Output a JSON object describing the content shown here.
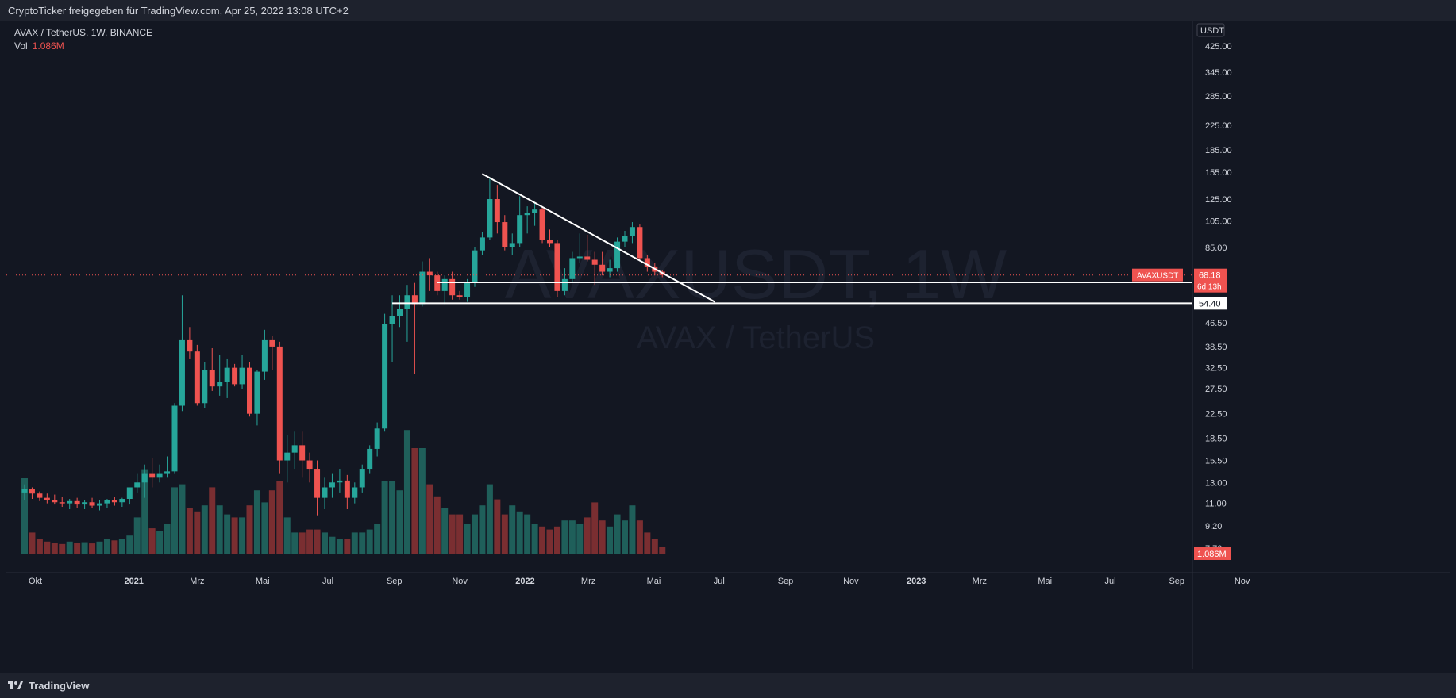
{
  "header": {
    "share_text": "CryptoTicker freigegeben für TradingView.com, Apr 25, 2022 13:08 UTC+2"
  },
  "legend": {
    "symbol_line": "AVAX / TetherUS, 1W, BINANCE",
    "vol_label": "Vol",
    "vol_value": "1.086M"
  },
  "watermark": {
    "line1": "AVAXUSDT, 1W",
    "line2": "AVAX / TetherUS"
  },
  "footer": {
    "brand": "TradingView"
  },
  "colors": {
    "background": "#131722",
    "up": "#26a69a",
    "down": "#ef5350",
    "vol_up": "#1f5f5a",
    "vol_down": "#7a2e31",
    "axis_text": "#d1d4dc"
  },
  "chart_data": {
    "type": "candlestick",
    "timeframe": "1W",
    "y_scale": "log",
    "y_currency": "USDT",
    "y_ticks": [
      "425.00",
      "345.00",
      "285.00",
      "225.00",
      "185.00",
      "155.00",
      "125.00",
      "105.00",
      "85.00",
      "64.30",
      "54.40",
      "46.50",
      "38.50",
      "32.50",
      "27.50",
      "22.50",
      "18.50",
      "15.50",
      "13.00",
      "11.00",
      "9.20",
      "7.70"
    ],
    "x_ticks": [
      "Okt",
      "2021",
      "Mrz",
      "Mai",
      "Jul",
      "Sep",
      "Nov",
      "2022",
      "Mrz",
      "Mai",
      "Jul",
      "Sep",
      "Nov",
      "2023",
      "Mrz",
      "Mai",
      "Jul",
      "Sep",
      "Nov"
    ],
    "current_price": {
      "symbol": "AVAXUSDT",
      "value": "68.18",
      "countdown": "6d 13h"
    },
    "levels": [
      {
        "value": "64.30"
      },
      {
        "value": "54.40"
      }
    ],
    "trendline": {
      "from": {
        "date": "2021-11-22",
        "price": 153
      },
      "to": {
        "date": "2022-06-27",
        "price": 55
      }
    },
    "volume_last": "1.086M",
    "candles": [
      [
        12.0,
        12.8,
        11.3,
        12.3,
        12.5
      ],
      [
        12.3,
        12.5,
        11.4,
        11.9,
        3.5
      ],
      [
        11.9,
        12.1,
        11.2,
        11.5,
        2.5
      ],
      [
        11.5,
        11.9,
        11.0,
        11.3,
        2.0
      ],
      [
        11.3,
        11.8,
        10.9,
        11.1,
        1.8
      ],
      [
        11.1,
        11.6,
        10.7,
        11.0,
        1.6
      ],
      [
        11.0,
        11.4,
        10.5,
        11.2,
        2.0
      ],
      [
        11.2,
        11.5,
        10.6,
        10.9,
        1.8
      ],
      [
        10.9,
        11.3,
        10.5,
        11.1,
        1.9
      ],
      [
        11.1,
        11.5,
        10.6,
        10.8,
        1.7
      ],
      [
        10.8,
        11.3,
        10.4,
        11.0,
        2.0
      ],
      [
        11.0,
        11.4,
        10.6,
        11.3,
        2.5
      ],
      [
        11.3,
        11.6,
        10.8,
        11.1,
        2.2
      ],
      [
        11.1,
        11.5,
        10.7,
        11.4,
        2.5
      ],
      [
        11.4,
        11.8,
        10.9,
        12.5,
        3.0
      ],
      [
        12.5,
        14.0,
        12.0,
        13.0,
        6.0
      ],
      [
        13.0,
        15.0,
        11.5,
        14.0,
        14.0
      ],
      [
        14.0,
        15.8,
        12.5,
        13.5,
        4.2
      ],
      [
        13.5,
        15.0,
        13.0,
        14.0,
        3.8
      ],
      [
        14.0,
        16.0,
        13.5,
        14.2,
        5.0
      ],
      [
        14.2,
        24.5,
        14.0,
        24.0,
        11.0
      ],
      [
        24.0,
        58.0,
        23.0,
        40.5,
        11.5
      ],
      [
        40.5,
        45.0,
        35.0,
        37.0,
        7.5
      ],
      [
        37.0,
        39.0,
        24.0,
        24.5,
        7.0
      ],
      [
        24.5,
        34.0,
        23.5,
        32.0,
        8.0
      ],
      [
        32.0,
        38.0,
        27.0,
        28.0,
        11.0
      ],
      [
        28.0,
        36.0,
        26.0,
        29.0,
        8.0
      ],
      [
        29.0,
        35.0,
        25.5,
        32.5,
        6.5
      ],
      [
        32.5,
        33.5,
        28.0,
        28.5,
        6.0
      ],
      [
        28.5,
        36.0,
        27.5,
        32.5,
        6.0
      ],
      [
        32.5,
        34.0,
        22.0,
        22.5,
        8.0
      ],
      [
        22.5,
        32.0,
        20.5,
        31.5,
        10.5
      ],
      [
        31.5,
        44.0,
        29.5,
        40.5,
        8.5
      ],
      [
        40.5,
        42.0,
        32.0,
        38.5,
        10.5
      ],
      [
        38.5,
        40.0,
        14.0,
        15.5,
        12.0
      ],
      [
        15.5,
        19.0,
        13.0,
        16.5,
        6.0
      ],
      [
        16.5,
        19.5,
        14.5,
        17.5,
        3.5
      ],
      [
        17.5,
        19.5,
        13.5,
        15.5,
        3.5
      ],
      [
        15.5,
        16.5,
        13.0,
        14.5,
        4.0
      ],
      [
        14.5,
        15.5,
        10.0,
        11.5,
        4.0
      ],
      [
        11.5,
        13.5,
        10.5,
        12.5,
        3.5
      ],
      [
        12.5,
        14.0,
        11.5,
        13.0,
        2.8
      ],
      [
        13.0,
        14.5,
        12.0,
        13.2,
        2.5
      ],
      [
        13.2,
        13.8,
        10.5,
        11.5,
        2.5
      ],
      [
        11.5,
        13.0,
        11.0,
        12.5,
        3.5
      ],
      [
        12.5,
        15.0,
        12.0,
        14.5,
        3.5
      ],
      [
        14.5,
        17.5,
        14.0,
        17.0,
        4.0
      ],
      [
        17.0,
        21.0,
        16.0,
        20.0,
        5.0
      ],
      [
        20.0,
        50.0,
        19.5,
        46.0,
        12.0
      ],
      [
        46.0,
        58.0,
        34.0,
        49.0,
        12.0
      ],
      [
        49.0,
        58.0,
        45.0,
        52.0,
        10.5
      ],
      [
        52.0,
        63.0,
        40.0,
        58.0,
        20.5
      ],
      [
        58.0,
        64.0,
        31.0,
        54.0,
        17.5
      ],
      [
        54.0,
        76.0,
        53.0,
        70.0,
        17.5
      ],
      [
        70.0,
        78.0,
        60.0,
        68.0,
        11.5
      ],
      [
        68.0,
        70.0,
        58.0,
        60.0,
        9.5
      ],
      [
        60.0,
        68.0,
        54.0,
        66.0,
        7.5
      ],
      [
        66.0,
        70.0,
        56.0,
        58.0,
        6.5
      ],
      [
        58.0,
        60.0,
        56.0,
        57.0,
        6.5
      ],
      [
        57.0,
        66.0,
        55.0,
        64.0,
        5.0
      ],
      [
        64.0,
        85.0,
        62.0,
        83.0,
        6.5
      ],
      [
        83.0,
        96.0,
        80.0,
        92.0,
        8.0
      ],
      [
        92.0,
        148.0,
        90.0,
        125.0,
        11.5
      ],
      [
        125.0,
        140.0,
        95.0,
        104.0,
        9.0
      ],
      [
        104.0,
        110.0,
        83.0,
        85.0,
        6.5
      ],
      [
        85.0,
        95.0,
        80.0,
        88.0,
        8.0
      ],
      [
        88.0,
        128.0,
        85.0,
        110.0,
        7.0
      ],
      [
        110.0,
        118.0,
        95.0,
        112.0,
        6.5
      ],
      [
        112.0,
        122.0,
        101.0,
        115.0,
        5.0
      ],
      [
        115.0,
        117.0,
        88.0,
        90.0,
        4.5
      ],
      [
        90.0,
        98.0,
        85.0,
        88.0,
        4.0
      ],
      [
        88.0,
        90.0,
        57.0,
        60.0,
        4.5
      ],
      [
        60.0,
        72.0,
        58.0,
        66.0,
        5.5
      ],
      [
        66.0,
        82.0,
        64.0,
        78.0,
        5.5
      ],
      [
        78.0,
        95.0,
        75.0,
        79.0,
        5.0
      ],
      [
        79.0,
        94.0,
        76.0,
        77.0,
        6.0
      ],
      [
        77.0,
        82.0,
        63.0,
        74.0,
        8.5
      ],
      [
        74.0,
        82.0,
        68.0,
        70.0,
        5.5
      ],
      [
        70.0,
        77.0,
        67.0,
        72.0,
        4.5
      ],
      [
        72.0,
        92.0,
        70.0,
        89.0,
        6.5
      ],
      [
        89.0,
        97.0,
        85.0,
        93.0,
        5.5
      ],
      [
        93.0,
        104.0,
        88.0,
        100.0,
        8.0
      ],
      [
        100.0,
        102.0,
        76.0,
        78.0,
        5.5
      ],
      [
        78.0,
        80.0,
        70.0,
        73.0,
        3.5
      ],
      [
        73.0,
        75.0,
        68.0,
        70.0,
        2.5
      ],
      [
        70.0,
        71.0,
        67.0,
        68.18,
        1.086
      ]
    ]
  }
}
